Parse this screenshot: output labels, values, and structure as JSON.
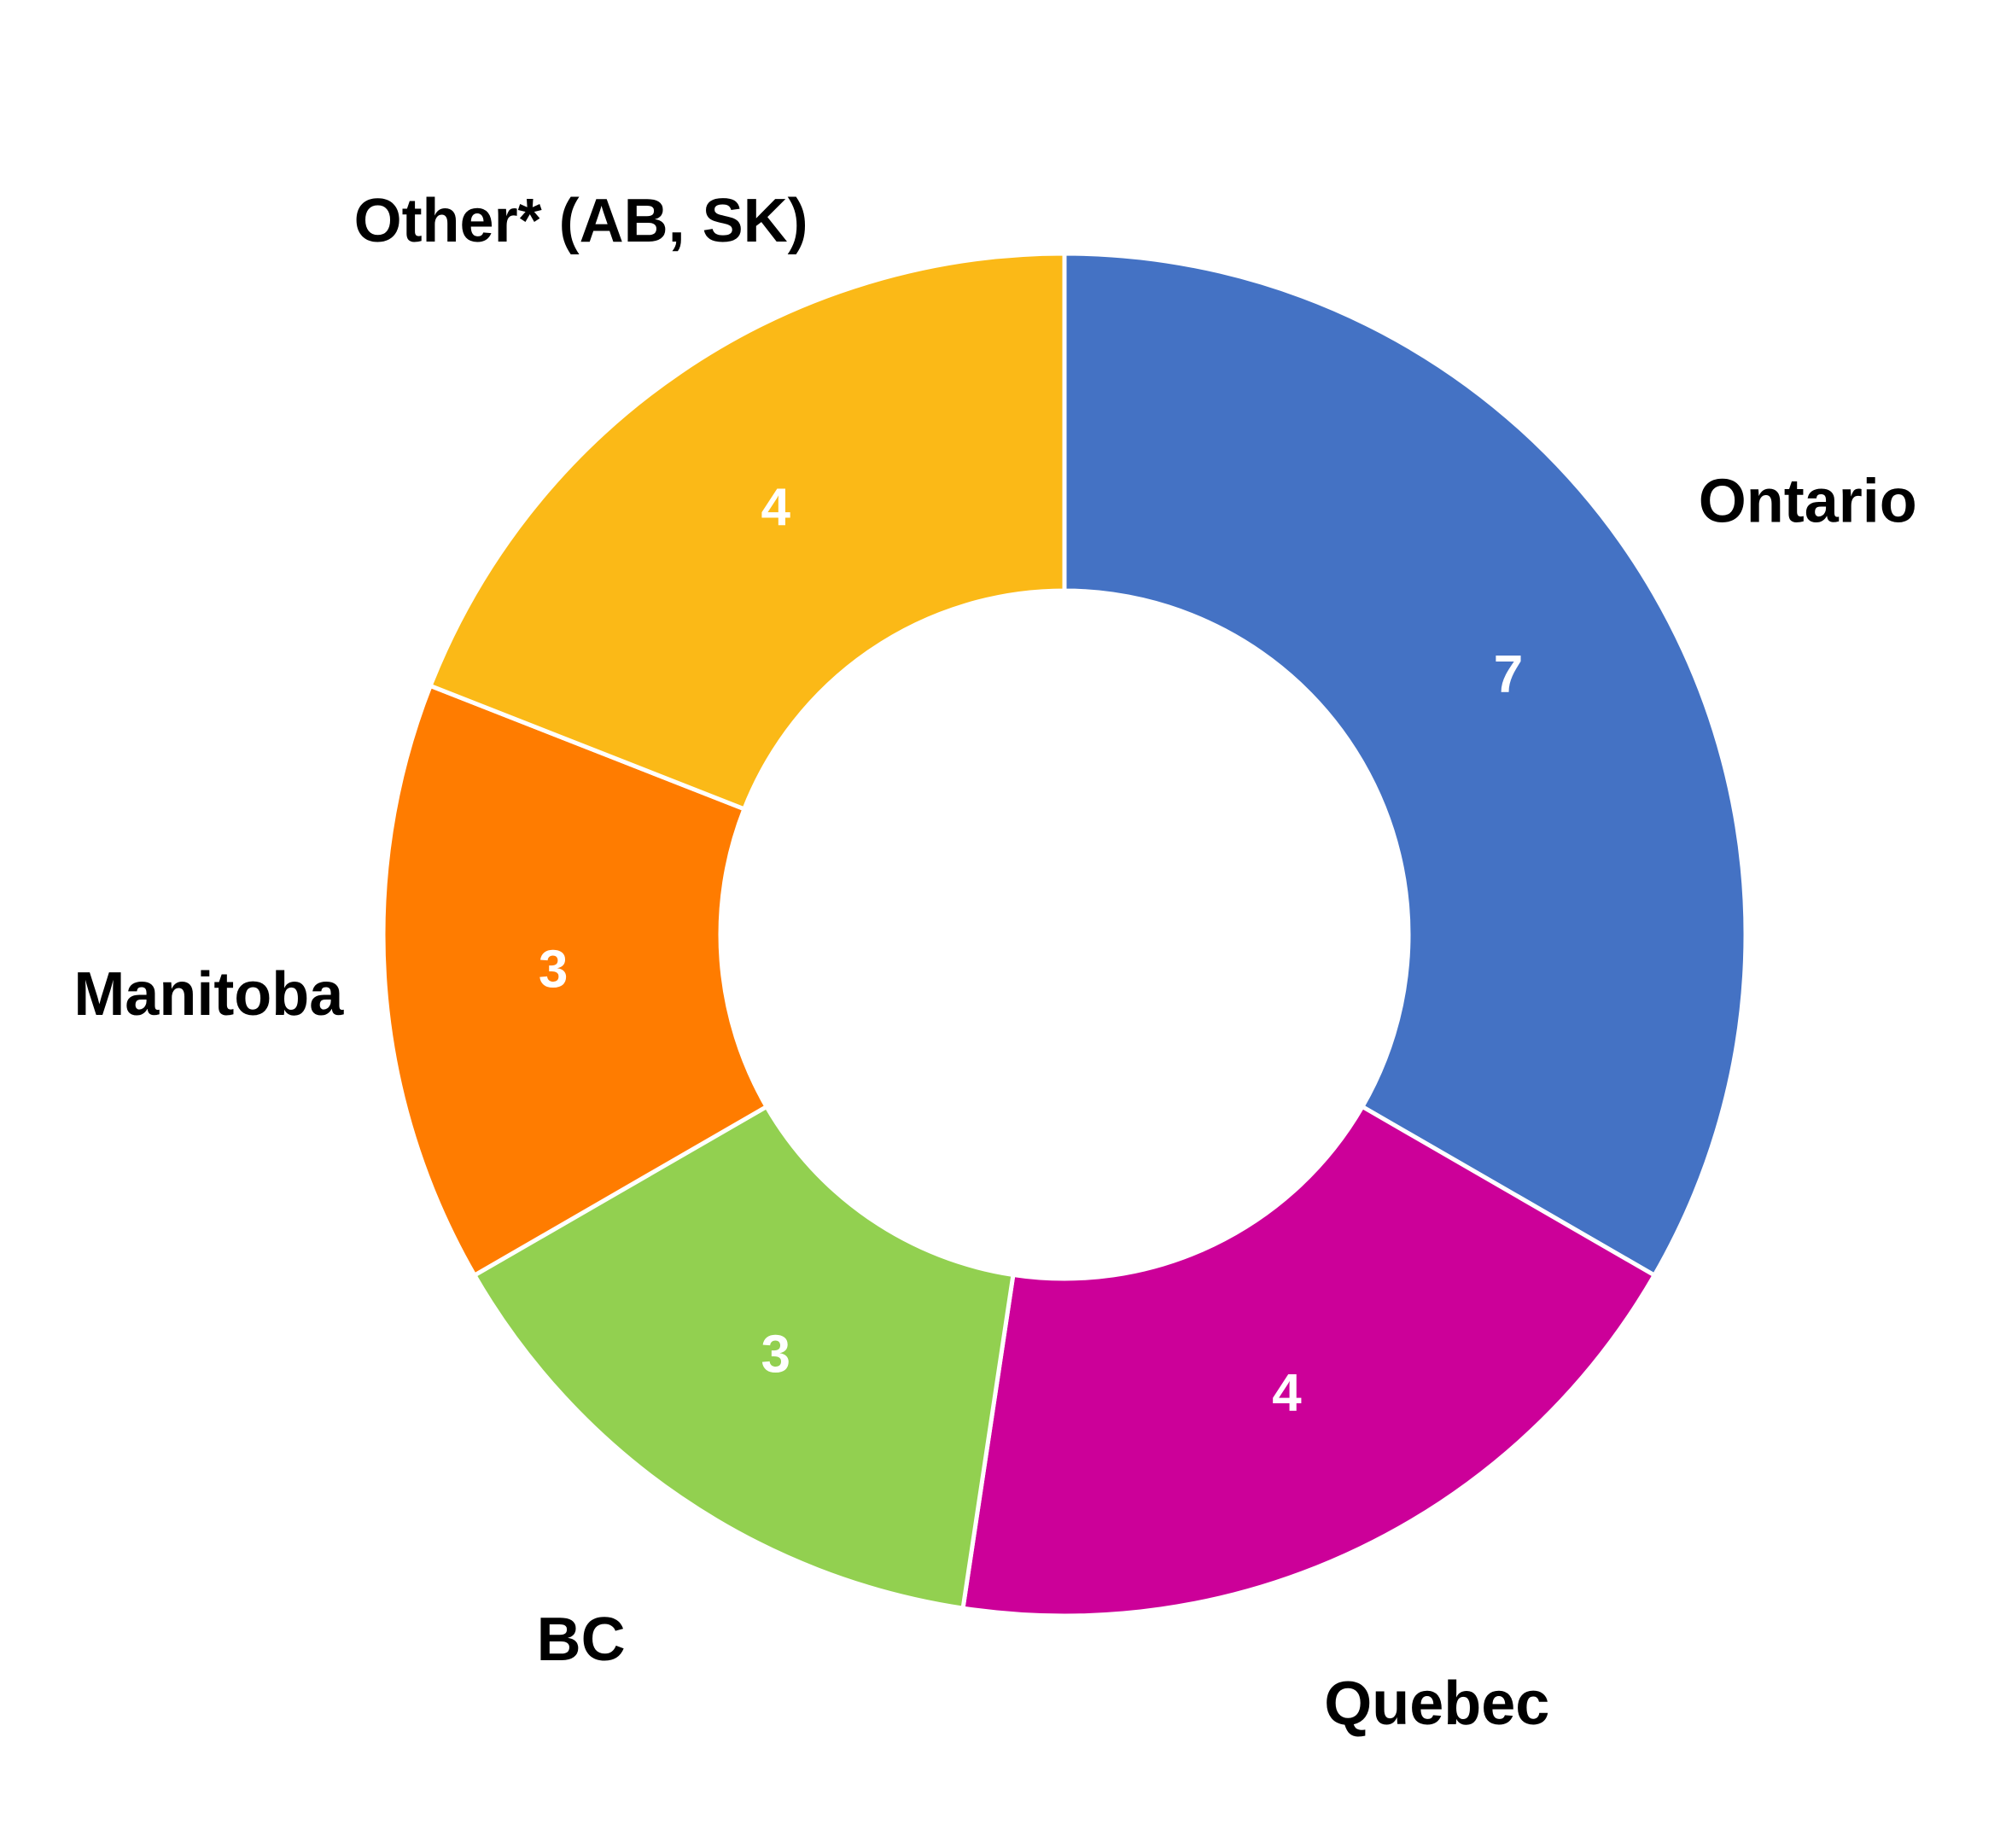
{
  "chart_data": {
    "type": "donut",
    "categories": [
      "Ontario",
      "Quebec",
      "BC",
      "Manitoba",
      "Other* (AB, SK)"
    ],
    "values": [
      7,
      4,
      3,
      3,
      4
    ],
    "colors": [
      "#4472c4",
      "#cc0099",
      "#92d050",
      "#ff7c00",
      "#fbb917"
    ]
  }
}
